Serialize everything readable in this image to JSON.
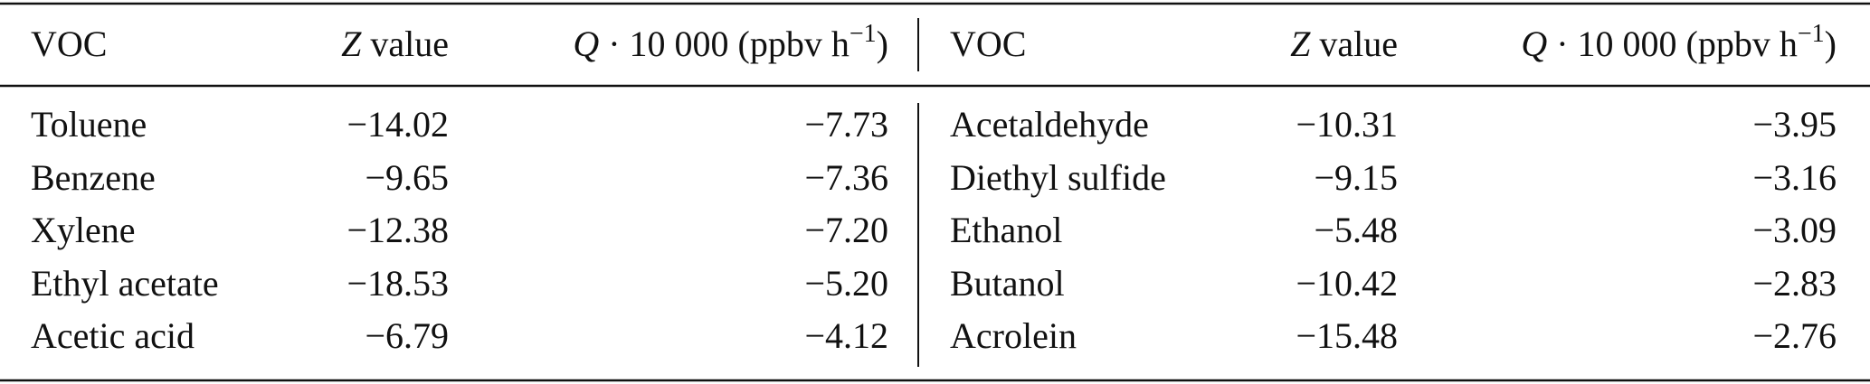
{
  "table": {
    "header": [
      "VOC",
      {
        "symbol": "Z",
        "text": "value"
      },
      {
        "symbol": "Q",
        "text": "· 10 000 (ppbv h",
        "superscript": "−1",
        "closing": ")"
      },
      "VOC",
      {
        "symbol": "Z",
        "text": "value"
      },
      {
        "symbol": "Q",
        "text": "· 10 000 (ppbv h",
        "superscript": "−1",
        "closing": ")"
      }
    ],
    "rows": [
      [
        "Toluene",
        "−14.02",
        "−7.73",
        "Acetaldehyde",
        "−10.31",
        "−3.95"
      ],
      [
        "Benzene",
        "−9.65",
        "−7.36",
        "Diethyl sulfide",
        "−9.15",
        "−3.16"
      ],
      [
        "Xylene",
        "−12.38",
        "−7.20",
        "Ethanol",
        "−5.48",
        "−3.09"
      ],
      [
        "Ethyl acetate",
        "−18.53",
        "−5.20",
        "Butanol",
        "−10.42",
        "−2.83"
      ],
      [
        "Acetic acid",
        "−6.79",
        "−4.12",
        "Acrolein",
        "−15.48",
        "−2.76"
      ]
    ]
  }
}
